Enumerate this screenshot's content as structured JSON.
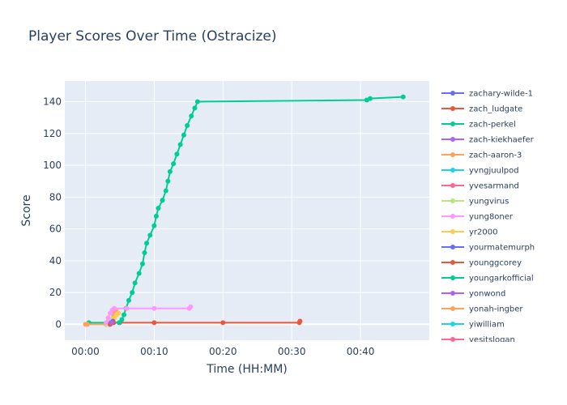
{
  "chart_data": {
    "type": "line",
    "title": "Player Scores Over Time (Ostracize)",
    "xlabel": "Time (HH:MM)",
    "ylabel": "Score",
    "x_unit": "minutes",
    "xlim": [
      -3,
      50
    ],
    "ylim": [
      -10,
      153
    ],
    "x_ticks": [
      {
        "value": 0,
        "label": "00:00"
      },
      {
        "value": 10,
        "label": "00:10"
      },
      {
        "value": 20,
        "label": "00:20"
      },
      {
        "value": 30,
        "label": "00:30"
      },
      {
        "value": 40,
        "label": "00:40"
      }
    ],
    "y_ticks": [
      0,
      20,
      40,
      60,
      80,
      100,
      120,
      140
    ],
    "grid": true,
    "legend_position": "right",
    "series": [
      {
        "name": "zachary-wilde-1",
        "color": "#636efa",
        "points": []
      },
      {
        "name": "zach_ludgate",
        "color": "#EF553B",
        "points": [
          [
            3.5,
            0
          ],
          [
            4.0,
            1
          ],
          [
            5.0,
            1
          ],
          [
            10,
            1
          ],
          [
            20,
            1
          ],
          [
            31.1,
            1
          ],
          [
            31.2,
            2
          ]
        ]
      },
      {
        "name": "zach-perkel",
        "color": "#00cc96",
        "points": [
          [
            0.5,
            1
          ],
          [
            4.9,
            1
          ],
          [
            5.3,
            3
          ],
          [
            5.6,
            6
          ],
          [
            5.9,
            10
          ],
          [
            6.3,
            15
          ],
          [
            6.8,
            20
          ],
          [
            7.2,
            26
          ],
          [
            7.8,
            32
          ],
          [
            8.3,
            38
          ],
          [
            8.6,
            45
          ],
          [
            8.9,
            51
          ],
          [
            9.4,
            56
          ],
          [
            10.0,
            62
          ],
          [
            10.3,
            68
          ],
          [
            10.6,
            73
          ],
          [
            11.2,
            78
          ],
          [
            11.7,
            84
          ],
          [
            12.0,
            90
          ],
          [
            12.3,
            96
          ],
          [
            12.8,
            101
          ],
          [
            13.3,
            107
          ],
          [
            13.8,
            113
          ],
          [
            14.3,
            119
          ],
          [
            14.8,
            125
          ],
          [
            15.4,
            131
          ],
          [
            15.9,
            136
          ],
          [
            16.3,
            140
          ],
          [
            40.9,
            141
          ],
          [
            41.4,
            142
          ],
          [
            46.2,
            143
          ]
        ]
      },
      {
        "name": "zach-kiekhaefer",
        "color": "#ab63fa",
        "points": [
          [
            3.4,
            1
          ],
          [
            3.6,
            2
          ],
          [
            3.9,
            1
          ]
        ]
      },
      {
        "name": "zach-aaron-3",
        "color": "#FFA15A",
        "points": [
          [
            0.0,
            0
          ],
          [
            0.3,
            0
          ],
          [
            3.0,
            0
          ],
          [
            3.6,
            1
          ],
          [
            3.9,
            3
          ],
          [
            4.1,
            5
          ],
          [
            4.3,
            7
          ],
          [
            4.5,
            8
          ]
        ]
      },
      {
        "name": "yvngjuulpod",
        "color": "#19d3f3",
        "points": []
      },
      {
        "name": "yvesarmand",
        "color": "#FF6692",
        "points": []
      },
      {
        "name": "yungvirus",
        "color": "#B6E880",
        "points": [
          [
            3.1,
            0
          ],
          [
            3.5,
            2
          ],
          [
            3.9,
            3
          ]
        ]
      },
      {
        "name": "yung8oner",
        "color": "#FF97FF",
        "points": [
          [
            3.0,
            1
          ],
          [
            3.3,
            4
          ],
          [
            3.6,
            7
          ],
          [
            3.9,
            9
          ],
          [
            4.2,
            10
          ],
          [
            6.0,
            10
          ],
          [
            10.0,
            10
          ],
          [
            15.1,
            10
          ],
          [
            15.3,
            11
          ]
        ]
      },
      {
        "name": "yr2000",
        "color": "#FECB52",
        "points": [
          [
            3.9,
            2
          ],
          [
            4.2,
            4
          ],
          [
            4.5,
            6
          ],
          [
            4.8,
            7
          ]
        ]
      },
      {
        "name": "yourmatemurph",
        "color": "#636efa",
        "points": [
          [
            3.7,
            1
          ],
          [
            4.0,
            2
          ]
        ]
      },
      {
        "name": "younggcorey",
        "color": "#EF553B",
        "points": [
          [
            3.6,
            0
          ],
          [
            4.1,
            1
          ]
        ]
      },
      {
        "name": "youngarkofficial",
        "color": "#00cc96",
        "points": []
      },
      {
        "name": "yonwond",
        "color": "#ab63fa",
        "points": [
          [
            3.8,
            1
          ]
        ]
      },
      {
        "name": "yonah-ingber",
        "color": "#FFA15A",
        "points": []
      },
      {
        "name": "yiwilliam",
        "color": "#19d3f3",
        "points": []
      },
      {
        "name": "yesitslogan",
        "color": "#FF6692",
        "points": []
      }
    ]
  }
}
